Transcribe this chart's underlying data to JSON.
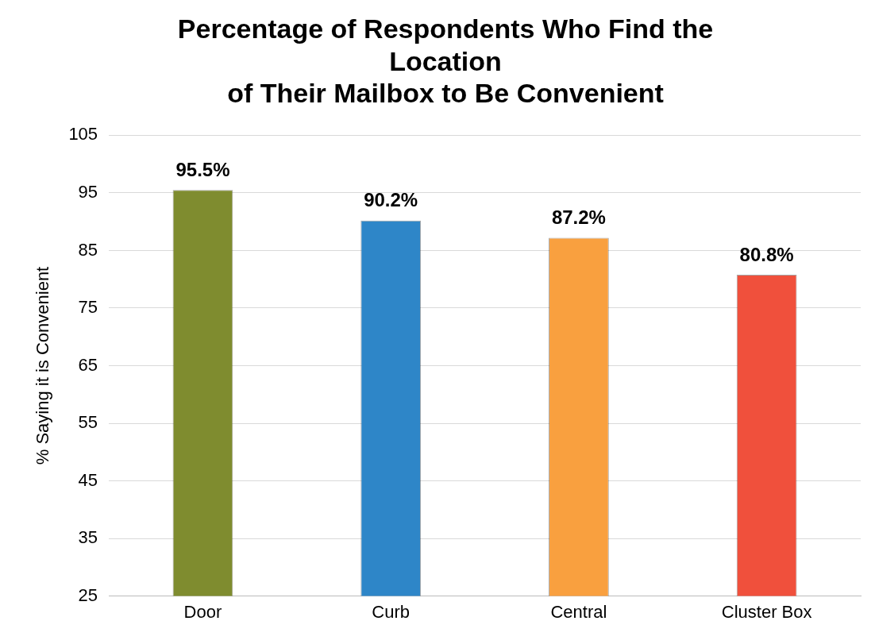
{
  "chart_data": {
    "type": "bar",
    "title": "Percentage of Respondents Who Find the\nLocation\nof Their Mailbox to Be Convenient",
    "ylabel": "% Saying it is Convenient",
    "categories": [
      "Door",
      "Curb",
      "Central",
      "Cluster Box"
    ],
    "values": [
      95.5,
      90.2,
      87.2,
      80.8
    ],
    "colors": [
      "#7f8c2f",
      "#2e86c8",
      "#f9a03f",
      "#f0503c"
    ],
    "value_labels": [
      "95.5%",
      "90.2%",
      "87.2%",
      "80.8%"
    ],
    "ylim": [
      25,
      105
    ],
    "yticks": [
      25,
      35,
      45,
      55,
      65,
      75,
      85,
      95,
      105
    ],
    "grid": "y",
    "legend": false
  }
}
